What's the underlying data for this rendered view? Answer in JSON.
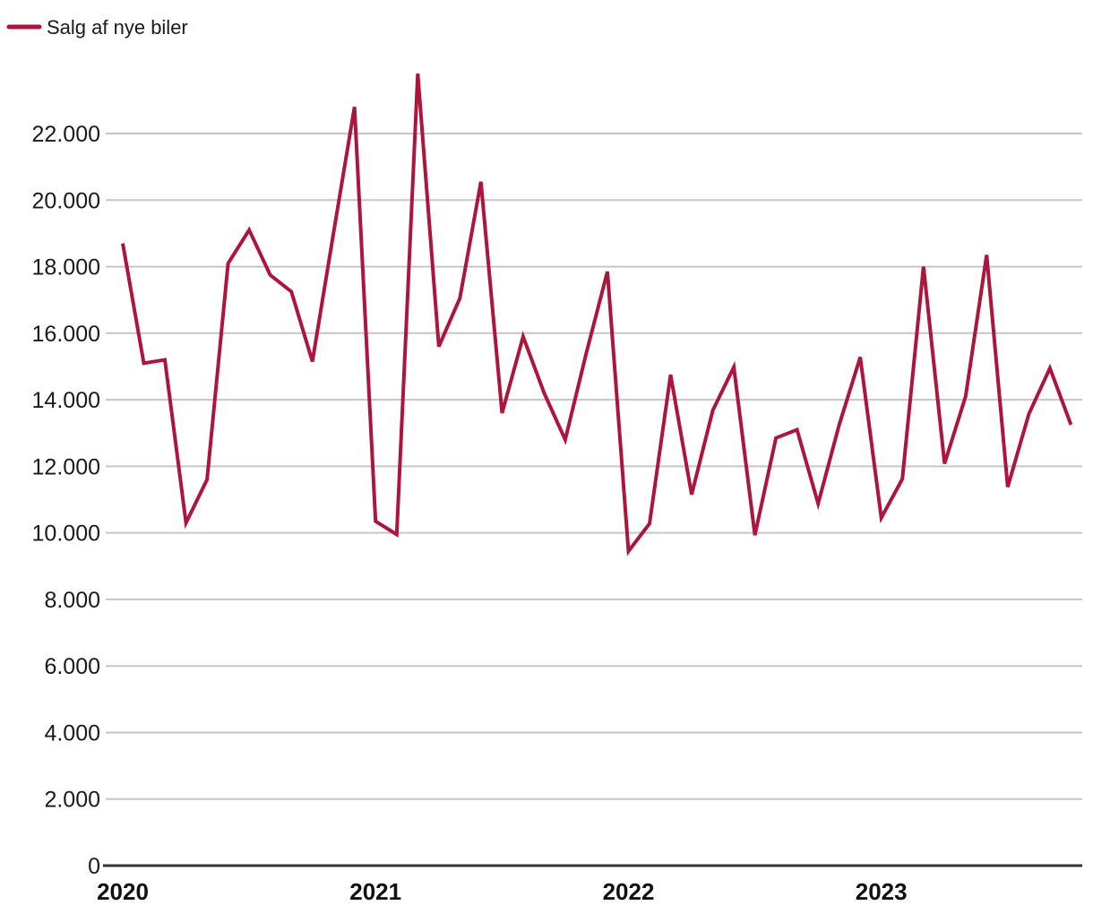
{
  "legend": {
    "label": "Salg af nye biler"
  },
  "colors": {
    "line": "#AE153C",
    "grid": "#c6c6c6",
    "axis": "#333333",
    "text": "#1a1a1a"
  },
  "y_axis": {
    "tick_values": [
      0,
      2000,
      4000,
      6000,
      8000,
      10000,
      12000,
      14000,
      16000,
      18000,
      20000,
      22000
    ],
    "tick_labels": [
      "0",
      "2.000",
      "4.000",
      "6.000",
      "8.000",
      "10.000",
      "12.000",
      "14.000",
      "16.000",
      "18.000",
      "20.000",
      "22.000"
    ]
  },
  "x_axis": {
    "tick_labels": [
      "2020",
      "2021",
      "2022",
      "2023"
    ],
    "tick_indices": [
      0,
      12,
      24,
      36
    ]
  },
  "chart_data": {
    "type": "line",
    "title": "",
    "series_name": "Salg af nye biler",
    "x": [
      "2020-01",
      "2020-02",
      "2020-03",
      "2020-04",
      "2020-05",
      "2020-06",
      "2020-07",
      "2020-08",
      "2020-09",
      "2020-10",
      "2020-11",
      "2020-12",
      "2021-01",
      "2021-02",
      "2021-03",
      "2021-04",
      "2021-05",
      "2021-06",
      "2021-07",
      "2021-08",
      "2021-09",
      "2021-10",
      "2021-11",
      "2021-12",
      "2022-01",
      "2022-02",
      "2022-03",
      "2022-04",
      "2022-05",
      "2022-06",
      "2022-07",
      "2022-08",
      "2022-09",
      "2022-10",
      "2022-11",
      "2022-12",
      "2023-01",
      "2023-02",
      "2023-03",
      "2023-04",
      "2023-05",
      "2023-06",
      "2023-07",
      "2023-08",
      "2023-09",
      "2023-10"
    ],
    "values": [
      18700,
      15100,
      15200,
      10300,
      11600,
      18100,
      19100,
      17750,
      17250,
      15150,
      19000,
      22800,
      10350,
      9950,
      23800,
      15600,
      17050,
      20550,
      13600,
      15900,
      14200,
      12800,
      15400,
      17850,
      9450,
      10280,
      14750,
      11150,
      13680,
      14980,
      9930,
      12850,
      13100,
      10880,
      13250,
      15280,
      10450,
      11620,
      18000,
      12080,
      14100,
      18350,
      11380,
      13570,
      14950,
      13250
    ],
    "ylim": [
      0,
      24000
    ],
    "grid": "horizontal",
    "legend_position": "top-left"
  }
}
